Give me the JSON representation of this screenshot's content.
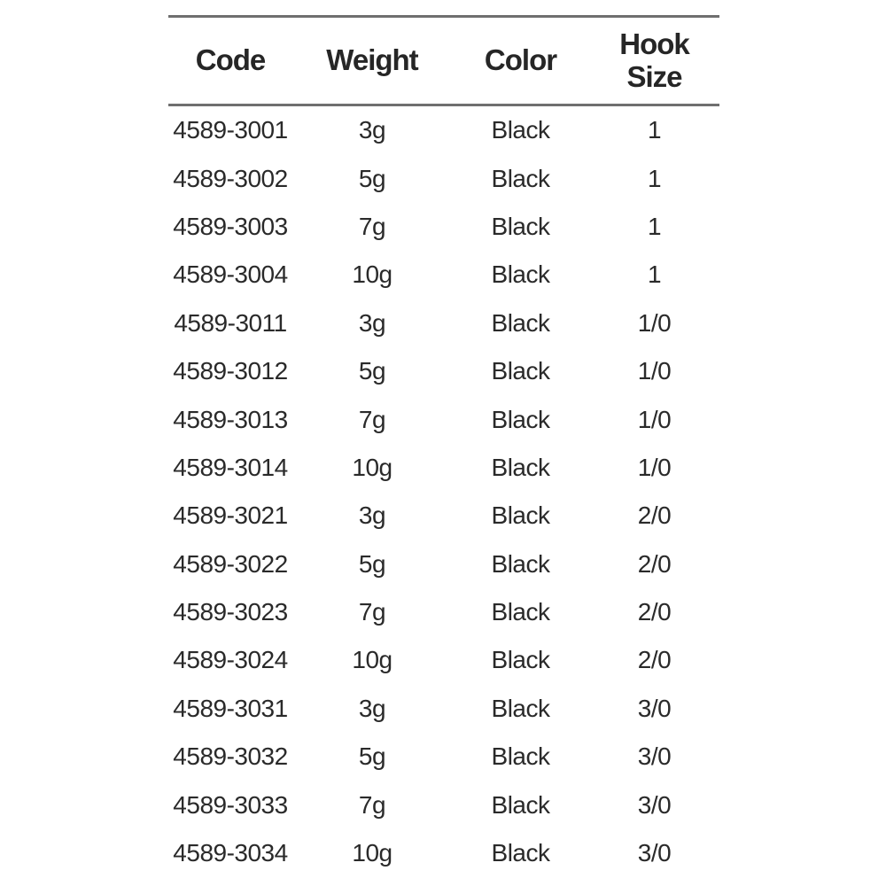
{
  "chart_data": {
    "type": "table",
    "title": "",
    "columns": [
      "Code",
      "Weight",
      "Color",
      "Hook Size"
    ],
    "rows": [
      [
        "4589-3001",
        "3g",
        "Black",
        "1"
      ],
      [
        "4589-3002",
        "5g",
        "Black",
        "1"
      ],
      [
        "4589-3003",
        "7g",
        "Black",
        "1"
      ],
      [
        "4589-3004",
        "10g",
        "Black",
        "1"
      ],
      [
        "4589-3011",
        "3g",
        "Black",
        "1/0"
      ],
      [
        "4589-3012",
        "5g",
        "Black",
        "1/0"
      ],
      [
        "4589-3013",
        "7g",
        "Black",
        "1/0"
      ],
      [
        "4589-3014",
        "10g",
        "Black",
        "1/0"
      ],
      [
        "4589-3021",
        "3g",
        "Black",
        "2/0"
      ],
      [
        "4589-3022",
        "5g",
        "Black",
        "2/0"
      ],
      [
        "4589-3023",
        "7g",
        "Black",
        "2/0"
      ],
      [
        "4589-3024",
        "10g",
        "Black",
        "2/0"
      ],
      [
        "4589-3031",
        "3g",
        "Black",
        "3/0"
      ],
      [
        "4589-3032",
        "5g",
        "Black",
        "3/0"
      ],
      [
        "4589-3033",
        "7g",
        "Black",
        "3/0"
      ],
      [
        "4589-3034",
        "10g",
        "Black",
        "3/0"
      ]
    ]
  },
  "table": {
    "columns": [
      {
        "label": "Code"
      },
      {
        "label": "Weight"
      },
      {
        "label": "Color"
      },
      {
        "label": "Hook Size"
      }
    ],
    "rows": [
      {
        "code": "4589-3001",
        "weight": "3g",
        "color": "Black",
        "hook_size": "1"
      },
      {
        "code": "4589-3002",
        "weight": "5g",
        "color": "Black",
        "hook_size": "1"
      },
      {
        "code": "4589-3003",
        "weight": "7g",
        "color": "Black",
        "hook_size": "1"
      },
      {
        "code": "4589-3004",
        "weight": "10g",
        "color": "Black",
        "hook_size": "1"
      },
      {
        "code": "4589-3011",
        "weight": "3g",
        "color": "Black",
        "hook_size": "1/0"
      },
      {
        "code": "4589-3012",
        "weight": "5g",
        "color": "Black",
        "hook_size": "1/0"
      },
      {
        "code": "4589-3013",
        "weight": "7g",
        "color": "Black",
        "hook_size": "1/0"
      },
      {
        "code": "4589-3014",
        "weight": "10g",
        "color": "Black",
        "hook_size": "1/0"
      },
      {
        "code": "4589-3021",
        "weight": "3g",
        "color": "Black",
        "hook_size": "2/0"
      },
      {
        "code": "4589-3022",
        "weight": "5g",
        "color": "Black",
        "hook_size": "2/0"
      },
      {
        "code": "4589-3023",
        "weight": "7g",
        "color": "Black",
        "hook_size": "2/0"
      },
      {
        "code": "4589-3024",
        "weight": "10g",
        "color": "Black",
        "hook_size": "2/0"
      },
      {
        "code": "4589-3031",
        "weight": "3g",
        "color": "Black",
        "hook_size": "3/0"
      },
      {
        "code": "4589-3032",
        "weight": "5g",
        "color": "Black",
        "hook_size": "3/0"
      },
      {
        "code": "4589-3033",
        "weight": "7g",
        "color": "Black",
        "hook_size": "3/0"
      },
      {
        "code": "4589-3034",
        "weight": "10g",
        "color": "Black",
        "hook_size": "3/0"
      }
    ]
  },
  "colors": {
    "background": "#ffffff",
    "text": "#2a2a2a",
    "header_text": "#262626",
    "rule": "#6f6f6f"
  }
}
